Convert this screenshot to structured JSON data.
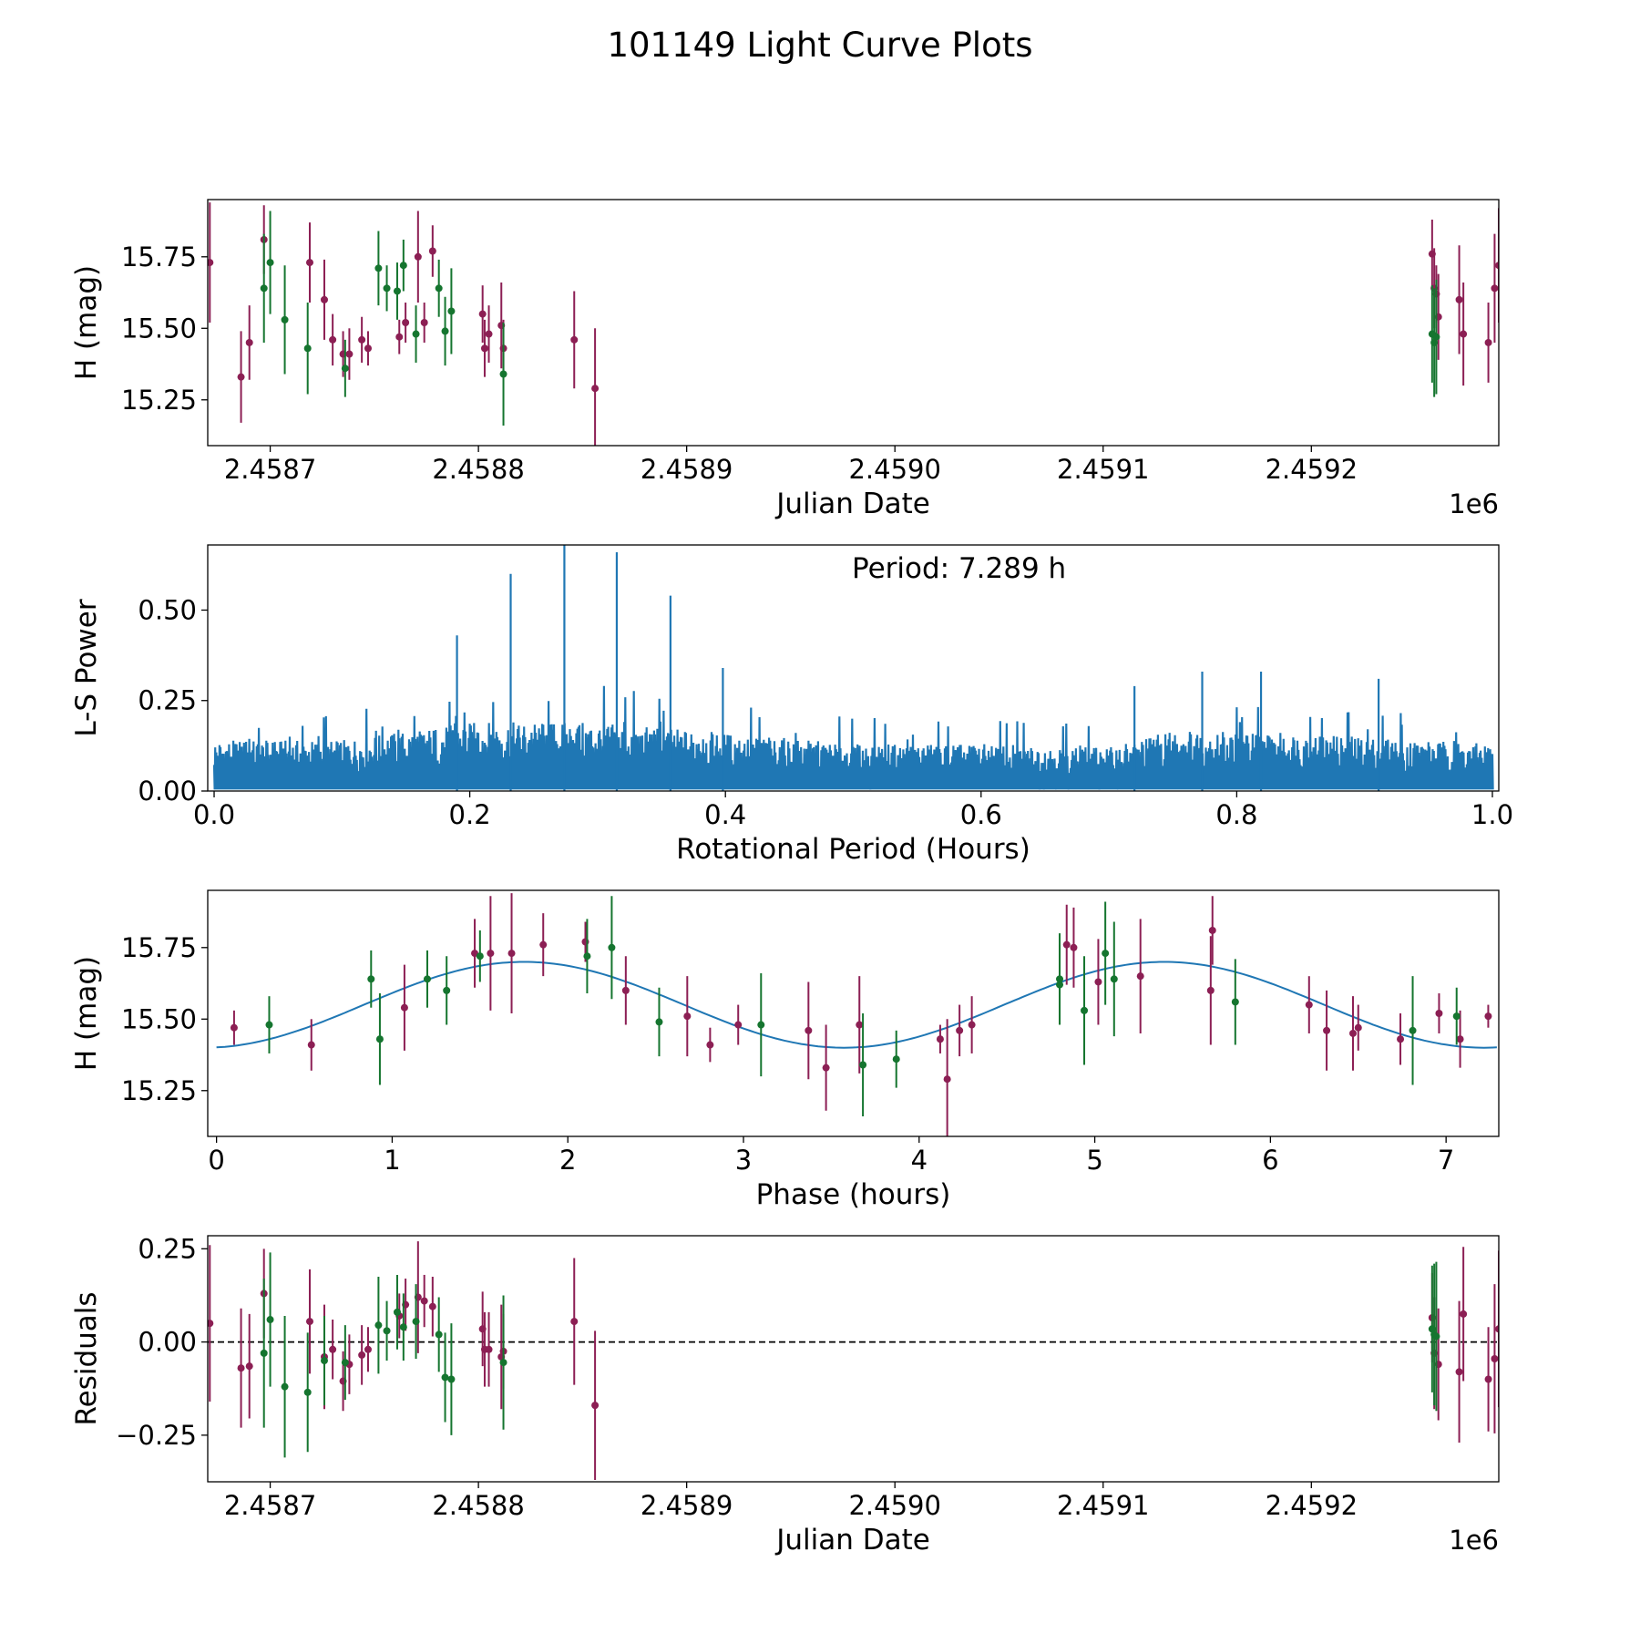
{
  "figure_title": "101149 Light Curve Plots",
  "colors": {
    "g_band": "#15752f",
    "o_band": "#8c1f54",
    "ls_line": "#1f77b4",
    "fit_line": "#1f77b4",
    "axis": "#000000"
  },
  "chart_data": [
    {
      "id": "lightcurve",
      "type": "scatter",
      "title": "",
      "xlabel": "Julian Date",
      "ylabel": "H (mag)",
      "x_offset_label": "1e6",
      "xlim": [
        2.45867,
        2.45929
      ],
      "ylim": [
        15.09,
        15.95
      ],
      "xticks": [
        2.4587,
        2.4588,
        2.4589,
        2.459,
        2.4591,
        2.4592
      ],
      "xtick_labels": [
        "2.4587",
        "2.4588",
        "2.4589",
        "2.4590",
        "2.4591",
        "2.4592"
      ],
      "yticks": [
        15.25,
        15.5,
        15.75
      ],
      "ytick_labels": [
        "15.25",
        "15.50",
        "15.75"
      ],
      "series": [
        {
          "name": "o",
          "color": "o_band",
          "points": [
            [
              2.458671,
              15.73,
              0.21
            ],
            [
              2.458686,
              15.33,
              0.16
            ],
            [
              2.45869,
              15.45,
              0.13
            ],
            [
              2.458697,
              15.81,
              0.12
            ],
            [
              2.458719,
              15.73,
              0.14
            ],
            [
              2.458726,
              15.6,
              0.14
            ],
            [
              2.45873,
              15.46,
              0.09
            ],
            [
              2.458735,
              15.41,
              0.08
            ],
            [
              2.458738,
              15.41,
              0.09
            ],
            [
              2.458744,
              15.46,
              0.08
            ],
            [
              2.458747,
              15.43,
              0.06
            ],
            [
              2.458762,
              15.47,
              0.06
            ],
            [
              2.458765,
              15.52,
              0.07
            ],
            [
              2.458771,
              15.75,
              0.16
            ],
            [
              2.458774,
              15.52,
              0.07
            ],
            [
              2.458778,
              15.77,
              0.09
            ],
            [
              2.458802,
              15.55,
              0.1
            ],
            [
              2.458803,
              15.43,
              0.1
            ],
            [
              2.458805,
              15.48,
              0.1
            ],
            [
              2.458811,
              15.51,
              0.15
            ],
            [
              2.458812,
              15.43,
              0.1
            ],
            [
              2.458846,
              15.46,
              0.17
            ],
            [
              2.458856,
              15.29,
              0.21
            ],
            [
              2.459258,
              15.76,
              0.12
            ],
            [
              2.459259,
              15.64,
              0.14
            ],
            [
              2.45926,
              15.62,
              0.1
            ],
            [
              2.459261,
              15.54,
              0.15
            ],
            [
              2.459271,
              15.6,
              0.19
            ],
            [
              2.459273,
              15.48,
              0.18
            ],
            [
              2.459285,
              15.45,
              0.14
            ],
            [
              2.459288,
              15.64,
              0.19
            ],
            [
              2.45929,
              15.72,
              0.2
            ]
          ]
        },
        {
          "name": "g",
          "color": "g_band",
          "points": [
            [
              2.458697,
              15.64,
              0.19
            ],
            [
              2.4587,
              15.73,
              0.18
            ],
            [
              2.458707,
              15.53,
              0.19
            ],
            [
              2.458718,
              15.43,
              0.16
            ],
            [
              2.458736,
              15.36,
              0.1
            ],
            [
              2.458752,
              15.71,
              0.13
            ],
            [
              2.458756,
              15.64,
              0.08
            ],
            [
              2.458761,
              15.63,
              0.1
            ],
            [
              2.458764,
              15.72,
              0.09
            ],
            [
              2.45877,
              15.48,
              0.1
            ],
            [
              2.458781,
              15.64,
              0.1
            ],
            [
              2.458784,
              15.49,
              0.12
            ],
            [
              2.458787,
              15.56,
              0.15
            ],
            [
              2.458812,
              15.34,
              0.18
            ],
            [
              2.459258,
              15.48,
              0.17
            ],
            [
              2.459259,
              15.45,
              0.19
            ],
            [
              2.45926,
              15.47,
              0.2
            ]
          ]
        }
      ]
    },
    {
      "id": "periodogram",
      "type": "line",
      "title": "",
      "xlabel": "Rotational Period (Hours)",
      "ylabel": "L-S Power",
      "annotation": "Period: 7.289 h",
      "xlim": [
        -0.005,
        1.005
      ],
      "ylim": [
        0.0,
        0.68
      ],
      "xticks": [
        0.0,
        0.2,
        0.4,
        0.6,
        0.8,
        1.0
      ],
      "xtick_labels": [
        "0.0",
        "0.2",
        "0.4",
        "0.6",
        "0.8",
        "1.0"
      ],
      "yticks": [
        0.0,
        0.25,
        0.5
      ],
      "ytick_labels": [
        "0.00",
        "0.25",
        "0.50"
      ],
      "x_range": [
        0.0,
        1.0
      ],
      "samples": 1200,
      "noise_envelope": [
        [
          0.0,
          0.14
        ],
        [
          0.1,
          0.14
        ],
        [
          0.2,
          0.19
        ],
        [
          0.3,
          0.19
        ],
        [
          0.4,
          0.16
        ],
        [
          0.5,
          0.13
        ],
        [
          0.6,
          0.13
        ],
        [
          0.7,
          0.12
        ],
        [
          0.75,
          0.17
        ],
        [
          0.85,
          0.16
        ],
        [
          0.95,
          0.14
        ],
        [
          1.0,
          0.13
        ]
      ],
      "peaks": [
        [
          0.19,
          0.43
        ],
        [
          0.232,
          0.6
        ],
        [
          0.274,
          0.68
        ],
        [
          0.315,
          0.66
        ],
        [
          0.357,
          0.54
        ],
        [
          0.398,
          0.34
        ],
        [
          0.773,
          0.33
        ],
        [
          0.819,
          0.33
        ],
        [
          0.911,
          0.31
        ],
        [
          0.72,
          0.29
        ]
      ]
    },
    {
      "id": "phased",
      "type": "scatter",
      "title": "",
      "xlabel": "Phase (hours)",
      "ylabel": "H (mag)",
      "xlim": [
        -0.05,
        7.3
      ],
      "ylim": [
        15.09,
        15.95
      ],
      "xticks": [
        0,
        1,
        2,
        3,
        4,
        5,
        6,
        7
      ],
      "xtick_labels": [
        "0",
        "1",
        "2",
        "3",
        "4",
        "5",
        "6",
        "7"
      ],
      "yticks": [
        15.25,
        15.5,
        15.75
      ],
      "ytick_labels": [
        "15.25",
        "15.50",
        "15.75"
      ],
      "fit": {
        "mean": 15.55,
        "amplitude": 0.15,
        "period_h": 7.289,
        "peak_phase_h": 1.75
      },
      "series": [
        {
          "name": "o",
          "color": "o_band",
          "points": [
            [
              0.1,
              15.47,
              0.06
            ],
            [
              0.54,
              15.41,
              0.09
            ],
            [
              1.07,
              15.54,
              0.15
            ],
            [
              1.47,
              15.73,
              0.12
            ],
            [
              1.56,
              15.73,
              0.2
            ],
            [
              1.68,
              15.73,
              0.21
            ],
            [
              1.86,
              15.76,
              0.11
            ],
            [
              2.1,
              15.77,
              0.07
            ],
            [
              2.33,
              15.6,
              0.12
            ],
            [
              2.68,
              15.51,
              0.14
            ],
            [
              2.81,
              15.41,
              0.06
            ],
            [
              2.97,
              15.48,
              0.07
            ],
            [
              3.37,
              15.46,
              0.17
            ],
            [
              3.47,
              15.33,
              0.15
            ],
            [
              3.66,
              15.48,
              0.17
            ],
            [
              4.12,
              15.43,
              0.05
            ],
            [
              4.16,
              15.29,
              0.21
            ],
            [
              4.23,
              15.46,
              0.09
            ],
            [
              4.3,
              15.48,
              0.1
            ],
            [
              4.84,
              15.76,
              0.14
            ],
            [
              4.88,
              15.75,
              0.14
            ],
            [
              5.02,
              15.63,
              0.15
            ],
            [
              5.26,
              15.65,
              0.2
            ],
            [
              5.66,
              15.6,
              0.19
            ],
            [
              5.67,
              15.81,
              0.12
            ],
            [
              6.22,
              15.55,
              0.1
            ],
            [
              6.32,
              15.46,
              0.14
            ],
            [
              6.47,
              15.45,
              0.13
            ],
            [
              6.5,
              15.47,
              0.08
            ],
            [
              6.74,
              15.43,
              0.09
            ],
            [
              6.96,
              15.52,
              0.07
            ],
            [
              7.08,
              15.43,
              0.1
            ],
            [
              7.24,
              15.51,
              0.04
            ]
          ]
        },
        {
          "name": "g",
          "color": "g_band",
          "points": [
            [
              0.3,
              15.48,
              0.1
            ],
            [
              0.88,
              15.64,
              0.1
            ],
            [
              0.93,
              15.43,
              0.16
            ],
            [
              1.2,
              15.64,
              0.1
            ],
            [
              1.31,
              15.6,
              0.12
            ],
            [
              1.5,
              15.72,
              0.09
            ],
            [
              2.11,
              15.72,
              0.13
            ],
            [
              2.25,
              15.75,
              0.18
            ],
            [
              2.52,
              15.49,
              0.12
            ],
            [
              3.1,
              15.48,
              0.18
            ],
            [
              3.68,
              15.34,
              0.18
            ],
            [
              3.87,
              15.36,
              0.1
            ],
            [
              4.8,
              15.62,
              0.14
            ],
            [
              4.8,
              15.64,
              0.16
            ],
            [
              4.94,
              15.53,
              0.19
            ],
            [
              5.06,
              15.73,
              0.18
            ],
            [
              5.11,
              15.64,
              0.2
            ],
            [
              5.8,
              15.56,
              0.15
            ],
            [
              6.81,
              15.46,
              0.19
            ],
            [
              7.06,
              15.51,
              0.1
            ]
          ]
        }
      ]
    },
    {
      "id": "residuals",
      "type": "scatter",
      "title": "",
      "xlabel": "Julian Date",
      "ylabel": "Residuals",
      "x_offset_label": "1e6",
      "xlim": [
        2.45867,
        2.45929
      ],
      "ylim": [
        -0.375,
        0.285
      ],
      "reference_line": 0.0,
      "xticks": [
        2.4587,
        2.4588,
        2.4589,
        2.459,
        2.4591,
        2.4592
      ],
      "xtick_labels": [
        "2.4587",
        "2.4588",
        "2.4589",
        "2.4590",
        "2.4591",
        "2.4592"
      ],
      "yticks": [
        -0.25,
        0.0,
        0.25
      ],
      "ytick_labels": [
        "−0.25",
        "0.00",
        "0.25"
      ],
      "series": [
        {
          "name": "o",
          "color": "o_band",
          "points": [
            [
              2.458671,
              0.05,
              0.21
            ],
            [
              2.458686,
              -0.07,
              0.16
            ],
            [
              2.45869,
              -0.065,
              0.14
            ],
            [
              2.458697,
              0.13,
              0.12
            ],
            [
              2.458719,
              0.055,
              0.14
            ],
            [
              2.458726,
              -0.04,
              0.14
            ],
            [
              2.45873,
              -0.02,
              0.08
            ],
            [
              2.458735,
              -0.105,
              0.08
            ],
            [
              2.458738,
              -0.06,
              0.08
            ],
            [
              2.458744,
              -0.035,
              0.08
            ],
            [
              2.458747,
              -0.02,
              0.06
            ],
            [
              2.458762,
              0.07,
              0.06
            ],
            [
              2.458765,
              0.1,
              0.07
            ],
            [
              2.458771,
              0.12,
              0.15
            ],
            [
              2.458774,
              0.11,
              0.07
            ],
            [
              2.458778,
              0.095,
              0.08
            ],
            [
              2.458802,
              0.035,
              0.1
            ],
            [
              2.458803,
              -0.02,
              0.1
            ],
            [
              2.458805,
              -0.02,
              0.1
            ],
            [
              2.458811,
              -0.04,
              0.14
            ],
            [
              2.458812,
              -0.025,
              0.1
            ],
            [
              2.458846,
              0.055,
              0.17
            ],
            [
              2.458856,
              -0.17,
              0.2
            ],
            [
              2.459258,
              0.065,
              0.12
            ],
            [
              2.459259,
              -0.03,
              0.15
            ],
            [
              2.459261,
              -0.06,
              0.15
            ],
            [
              2.459271,
              -0.08,
              0.19
            ],
            [
              2.459273,
              0.075,
              0.18
            ],
            [
              2.459285,
              -0.1,
              0.14
            ],
            [
              2.459288,
              -0.045,
              0.2
            ],
            [
              2.45929,
              0.035,
              0.21
            ]
          ]
        },
        {
          "name": "g",
          "color": "g_band",
          "points": [
            [
              2.458697,
              -0.03,
              0.2
            ],
            [
              2.4587,
              0.06,
              0.18
            ],
            [
              2.458707,
              -0.12,
              0.19
            ],
            [
              2.458718,
              -0.135,
              0.16
            ],
            [
              2.458726,
              -0.05,
              0.12
            ],
            [
              2.458736,
              -0.055,
              0.1
            ],
            [
              2.458752,
              0.045,
              0.13
            ],
            [
              2.458756,
              0.03,
              0.08
            ],
            [
              2.458761,
              0.08,
              0.1
            ],
            [
              2.458764,
              0.04,
              0.09
            ],
            [
              2.45877,
              0.055,
              0.1
            ],
            [
              2.458781,
              0.02,
              0.1
            ],
            [
              2.458784,
              -0.095,
              0.12
            ],
            [
              2.458787,
              -0.1,
              0.15
            ],
            [
              2.458812,
              -0.055,
              0.18
            ],
            [
              2.459258,
              0.035,
              0.17
            ],
            [
              2.459259,
              0.02,
              0.19
            ],
            [
              2.45926,
              0.015,
              0.2
            ]
          ]
        }
      ]
    }
  ]
}
